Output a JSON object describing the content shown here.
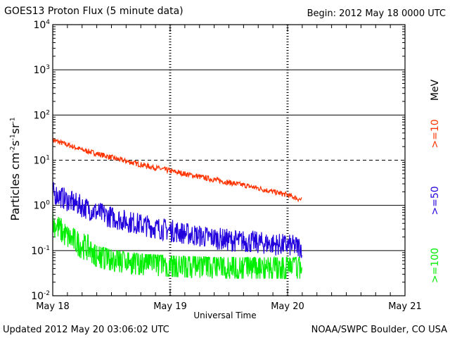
{
  "header": {
    "title": "GOES13 Proton Flux (5 minute data)",
    "begin": "Begin: 2012 May 18 0000 UTC"
  },
  "footer": {
    "updated": "Updated 2012 May 20 03:06:02 UTC",
    "credit": "NOAA/SWPC Boulder, CO USA"
  },
  "colors": {
    "p10": "#ff3300",
    "p50": "#2200dd",
    "p100": "#00ee00"
  },
  "chart_data": {
    "type": "line",
    "title": "GOES13 Proton Flux (5 minute data)",
    "xlabel": "Universal Time",
    "ylabel": {
      "base": "Particles cm",
      "sup1": "-2",
      "mid1": "s",
      "sup2": "-1",
      "mid2": "sr",
      "sup3": "-1"
    },
    "x_range_hours": [
      0,
      72
    ],
    "x_ticks": [
      {
        "hour": 0,
        "label": "May 18"
      },
      {
        "hour": 24,
        "label": "May 19"
      },
      {
        "hour": 48,
        "label": "May 20"
      },
      {
        "hour": 72,
        "label": "May 21"
      }
    ],
    "y_scale": "log",
    "y_range": [
      0.01,
      10000
    ],
    "y_ticks": [
      {
        "value": 10000,
        "base": "10",
        "exp": "4"
      },
      {
        "value": 1000,
        "base": "10",
        "exp": "3"
      },
      {
        "value": 100,
        "base": "10",
        "exp": "2"
      },
      {
        "value": 10,
        "base": "10",
        "exp": "1"
      },
      {
        "value": 1,
        "base": "10",
        "exp": "0"
      },
      {
        "value": 0.1,
        "base": "10",
        "exp": "-1"
      },
      {
        "value": 0.01,
        "base": "10",
        "exp": "-2"
      }
    ],
    "legend": {
      "unit": "MeV",
      "entries": [
        {
          "label": ">=10",
          "series": "p10"
        },
        {
          "label": ">=50",
          "series": "p50"
        },
        {
          "label": ">=100",
          "series": "p100"
        }
      ]
    },
    "series": [
      {
        "name": ">=10 MeV",
        "key": "p10",
        "hours": [
          0,
          3,
          6,
          9,
          12,
          15,
          18,
          21,
          24,
          27,
          30,
          33,
          36,
          39,
          42,
          45,
          48,
          51
        ],
        "values": [
          28,
          22,
          17,
          14,
          11.5,
          9.5,
          8,
          6.8,
          5.8,
          5.0,
          4.3,
          3.7,
          3.2,
          2.8,
          2.4,
          2.0,
          1.7,
          1.3
        ],
        "noise_dex": 0.06
      },
      {
        "name": ">=50 MeV",
        "key": "p50",
        "hours": [
          0,
          3,
          6,
          9,
          12,
          15,
          18,
          21,
          24,
          27,
          30,
          33,
          36,
          39,
          42,
          45,
          48,
          51
        ],
        "values": [
          1.9,
          1.3,
          0.95,
          0.7,
          0.55,
          0.45,
          0.38,
          0.32,
          0.28,
          0.24,
          0.21,
          0.19,
          0.17,
          0.16,
          0.15,
          0.14,
          0.13,
          0.12
        ],
        "noise_dex": 0.25
      },
      {
        "name": ">=100 MeV",
        "key": "p100",
        "hours": [
          0,
          3,
          6,
          9,
          12,
          15,
          18,
          21,
          24,
          27,
          30,
          33,
          36,
          39,
          42,
          45,
          48,
          51
        ],
        "values": [
          0.42,
          0.2,
          0.13,
          0.09,
          0.075,
          0.065,
          0.06,
          0.057,
          0.055,
          0.053,
          0.052,
          0.05,
          0.05,
          0.05,
          0.05,
          0.05,
          0.05,
          0.05
        ],
        "noise_dex": 0.3
      }
    ]
  }
}
